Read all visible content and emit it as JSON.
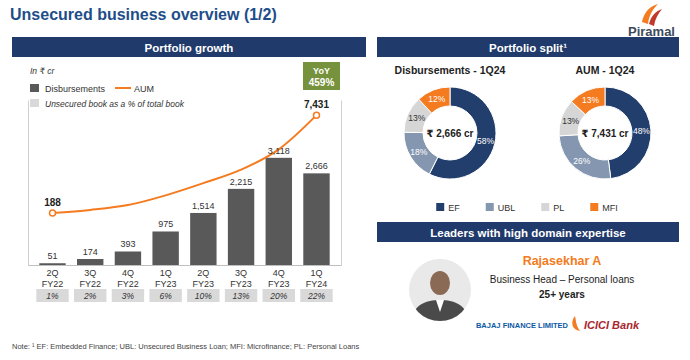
{
  "page": {
    "title": "Unsecured business overview (1/2)",
    "logo": "Piramal",
    "left_header": "Portfolio growth",
    "right_header": "Portfolio split¹",
    "leaders_header": "Leaders with high domain expertise",
    "leader": {
      "name": "Rajasekhar A",
      "role": "Business Head – Personal loans",
      "experience": "25+ years",
      "past_employers": [
        "BAJAJ FINANCE LIMITED",
        "ICICI Bank"
      ]
    },
    "note": "Note: ¹ EF: Embedded Finance; UBL: Unsecured Business Loan; MFI: Microfinance; PL: Personal Loans"
  },
  "chart_data": [
    {
      "type": "bar",
      "subtitle": "In ₹ cr",
      "categories": [
        "2Q FY22",
        "3Q FY22",
        "4Q FY22",
        "1Q FY23",
        "2Q FY23",
        "3Q FY23",
        "4Q FY23",
        "1Q FY24"
      ],
      "series": [
        {
          "name": "Disbursements",
          "type": "bar",
          "color": "#595959",
          "values": [
            51,
            174,
            393,
            975,
            1514,
            2215,
            3118,
            2666
          ],
          "value_labels": [
            "51",
            "174",
            "393",
            "975",
            "1,514",
            "2,215",
            "3,118",
            "2,666"
          ]
        },
        {
          "name": "AUM",
          "type": "line",
          "axis": "y2",
          "color": "#f47b20",
          "marker": "circle",
          "values": [
            188,
            420,
            780,
            1500,
            2400,
            3400,
            4900,
            7431
          ],
          "value_labels": [
            "188",
            null,
            null,
            null,
            null,
            null,
            null,
            "7,431"
          ]
        }
      ],
      "book_share": {
        "name": "Unsecured book as a % of total book",
        "values": [
          1,
          2,
          3,
          6,
          10,
          13,
          20,
          22
        ],
        "value_labels": [
          "1%",
          "2%",
          "3%",
          "6%",
          "10%",
          "13%",
          "20%",
          "22%"
        ]
      },
      "annotation": {
        "title": "YoY",
        "label": "459%"
      },
      "ylim": [
        0,
        4800
      ],
      "y2lim": [
        -3650,
        8550
      ],
      "tick_labels": false,
      "grid": false,
      "data_labels": true,
      "legend": "top-left"
    },
    {
      "type": "pie",
      "title": "Disbursements - 1Q24",
      "center_label": "₹ 2,666 cr",
      "categories": [
        "EF",
        "UBL",
        "PL",
        "MFI"
      ],
      "values": [
        58,
        18,
        13,
        12
      ],
      "value_labels": [
        "58%",
        "18%",
        "13%",
        "12%"
      ],
      "colors": [
        "#223e6d",
        "#8496b0",
        "#d6d6d6",
        "#f47b20"
      ],
      "data_labels": true,
      "legend": "bottom"
    },
    {
      "type": "pie",
      "title": "AUM - 1Q24",
      "center_label": "₹ 7,431 cr",
      "categories": [
        "EF",
        "UBL",
        "PL",
        "MFI"
      ],
      "values": [
        48,
        26,
        13,
        13
      ],
      "value_labels": [
        "48%",
        "26%",
        "13%",
        "13%"
      ],
      "colors": [
        "#223e6d",
        "#8496b0",
        "#d6d6d6",
        "#f47b20"
      ],
      "data_labels": true
    }
  ]
}
